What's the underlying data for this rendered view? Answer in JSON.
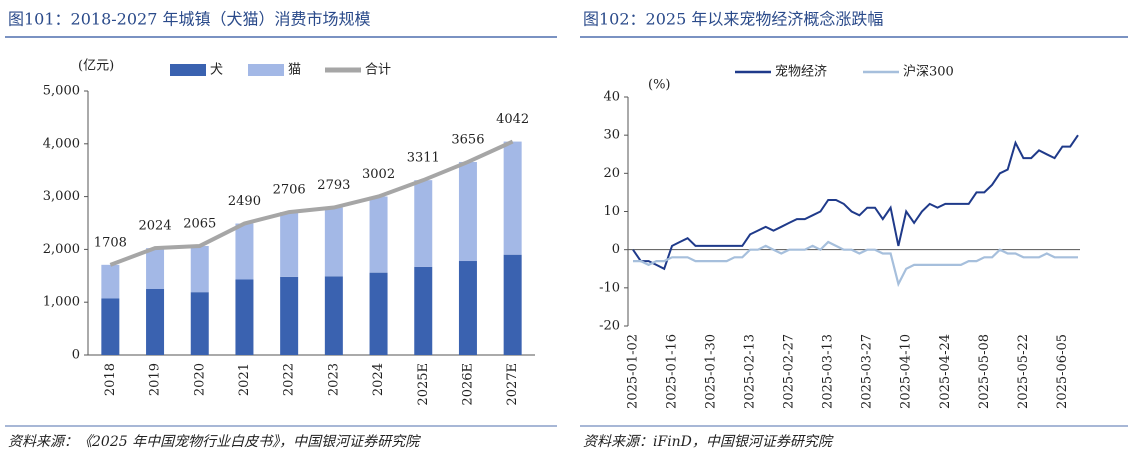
{
  "chart_data": [
    {
      "type": "bar",
      "stacked": true,
      "title": "图101：2018-2027 年城镇（犬猫）消费市场规模",
      "ylabel": "(亿元)",
      "source": "资料来源：《2025 年中国宠物行业白皮书》，中国银河证券研究院",
      "categories": [
        "2018",
        "2019",
        "2020",
        "2021",
        "2022",
        "2023",
        "2024",
        "2025E",
        "2026E",
        "2027E"
      ],
      "series": [
        {
          "name": "犬",
          "color": "#3a62b0",
          "values": [
            1070,
            1250,
            1190,
            1430,
            1480,
            1490,
            1560,
            1670,
            1780,
            1900
          ]
        },
        {
          "name": "猫",
          "color": "#a3b8e6",
          "values": [
            638,
            774,
            875,
            1060,
            1226,
            1303,
            1442,
            1641,
            1876,
            2142
          ]
        },
        {
          "name": "合计",
          "type": "line",
          "color": "#a6a6a6",
          "values": [
            1708,
            2024,
            2065,
            2490,
            2706,
            2793,
            3002,
            3311,
            3656,
            4042
          ]
        }
      ],
      "ylim": [
        0,
        5000
      ],
      "yticks": [
        0,
        {
          "value": 1000,
          "label": "1,000"
        },
        {
          "value": 2000,
          "label": "2,000"
        },
        {
          "value": 3000,
          "label": "3,000"
        },
        {
          "value": 4000,
          "label": "4,000"
        },
        {
          "value": 5000,
          "label": "5,000"
        }
      ],
      "legend": "top"
    },
    {
      "type": "line",
      "title": "图102：2025 年以来宠物经济概念涨跌幅",
      "ylabel": "(%)",
      "source": "资料来源：iFinD，中国银河证券研究院",
      "categories": [
        "2025-01-02",
        null,
        null,
        null,
        null,
        "2025-01-16",
        null,
        null,
        null,
        null,
        "2025-01-30",
        null,
        null,
        null,
        null,
        "2025-02-13",
        null,
        null,
        null,
        null,
        "2025-02-27",
        null,
        null,
        null,
        null,
        "2025-03-13",
        null,
        null,
        null,
        null,
        "2025-03-27",
        null,
        null,
        null,
        null,
        "2025-04-10",
        null,
        null,
        null,
        null,
        "2025-04-24",
        null,
        null,
        null,
        null,
        "2025-05-08",
        null,
        null,
        null,
        null,
        "2025-05-22",
        null,
        null,
        null,
        null,
        "2025-06-05",
        null,
        null
      ],
      "series": [
        {
          "name": "宠物经济",
          "color": "#1f3a8a",
          "values": [
            0,
            -3,
            -3,
            -4,
            -5,
            1,
            2,
            3,
            1,
            1,
            1,
            1,
            1,
            1,
            1,
            4,
            5,
            6,
            5,
            6,
            7,
            8,
            8,
            9,
            10,
            13,
            13,
            12,
            10,
            9,
            11,
            11,
            8,
            11,
            1,
            10,
            7,
            10,
            12,
            11,
            12,
            12,
            12,
            12,
            15,
            15,
            17,
            20,
            21,
            28,
            24,
            24,
            26,
            25,
            24,
            27,
            27,
            30
          ]
        },
        {
          "name": "沪深300",
          "color": "#a6bfdc",
          "values": [
            -3,
            -3,
            -4,
            -3,
            -3,
            -2,
            -2,
            -2,
            -3,
            -3,
            -3,
            -3,
            -3,
            -2,
            -2,
            0,
            0,
            1,
            0,
            -1,
            0,
            0,
            0,
            1,
            0,
            2,
            1,
            0,
            0,
            -1,
            0,
            0,
            -1,
            -1,
            -9,
            -5,
            -4,
            -4,
            -4,
            -4,
            -4,
            -4,
            -4,
            -3,
            -3,
            -2,
            -2,
            0,
            -1,
            -1,
            -2,
            -2,
            -2,
            -1,
            -2,
            -2,
            -2,
            -2
          ]
        }
      ],
      "ylim": [
        -20,
        40
      ],
      "yticks": [
        -20,
        -10,
        0,
        10,
        20,
        30,
        40
      ],
      "legend": "top"
    }
  ]
}
